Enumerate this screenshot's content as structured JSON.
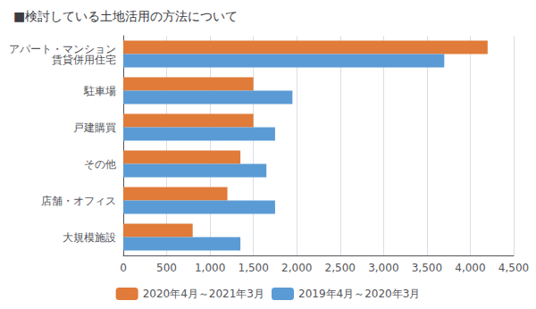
{
  "chart_data": {
    "type": "bar",
    "orientation": "horizontal",
    "title": "■検討している土地活用の方法について",
    "categories": [
      "大規模施設",
      "店舗・オフィス",
      "その他",
      "戸建購買",
      "駐車場",
      "アパート・マンション\n賃貸併用住宅"
    ],
    "series": [
      {
        "name": "2020年4月～2021年3月",
        "color": "#e07b39",
        "values": [
          800,
          1200,
          1350,
          1500,
          1500,
          4200
        ]
      },
      {
        "name": "2019年4月～2020年3月",
        "color": "#5b9bd5",
        "values": [
          1350,
          1750,
          1650,
          1750,
          1950,
          3700
        ]
      }
    ],
    "xlim": [
      0,
      4500
    ],
    "xticks": [
      0,
      500,
      {
        "value": 1000,
        "label": "1,000"
      },
      {
        "value": 1500,
        "label": "1,500"
      },
      {
        "value": 2000,
        "label": "2,000"
      },
      {
        "value": 2500,
        "label": "2,500"
      },
      {
        "value": 3000,
        "label": "3,000"
      },
      {
        "value": 3500,
        "label": "3,500"
      },
      {
        "value": 4000,
        "label": "4,000"
      },
      {
        "value": 4500,
        "label": "4,500"
      }
    ],
    "grid": true,
    "legend": "bottom"
  }
}
